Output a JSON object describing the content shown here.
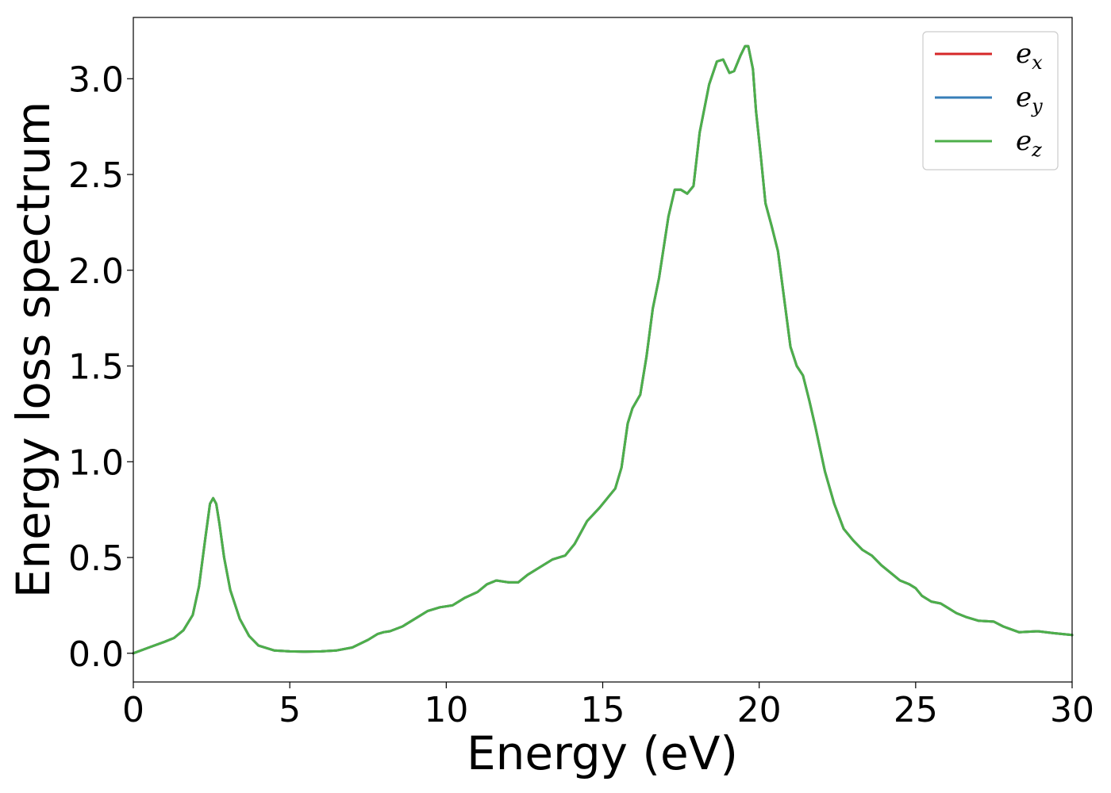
{
  "chart_data": {
    "type": "line",
    "title": "",
    "xlabel": "Energy (eV)",
    "ylabel": "Energy loss spectrum",
    "xlim": [
      0,
      30
    ],
    "ylim": [
      -0.15,
      3.32
    ],
    "xticks": [
      0,
      5,
      10,
      15,
      20,
      25,
      30
    ],
    "yticks": [
      0.0,
      0.5,
      1.0,
      1.5,
      2.0,
      2.5,
      3.0
    ],
    "xtick_labels": [
      "0",
      "5",
      "10",
      "15",
      "20",
      "25",
      "30"
    ],
    "ytick_labels": [
      "0.0",
      "0.5",
      "1.0",
      "1.5",
      "2.0",
      "2.5",
      "3.0"
    ],
    "grid": false,
    "legend_position": "top-right",
    "x": [
      0,
      0.5,
      1,
      1.3,
      1.6,
      1.9,
      2.1,
      2.3,
      2.45,
      2.55,
      2.65,
      2.75,
      2.9,
      3.1,
      3.4,
      3.7,
      4,
      4.5,
      5,
      5.5,
      6,
      6.5,
      7,
      7.5,
      7.8,
      8,
      8.2,
      8.6,
      9,
      9.4,
      9.8,
      10.2,
      10.6,
      11,
      11.3,
      11.6,
      12,
      12.3,
      12.6,
      13,
      13.4,
      13.8,
      14.1,
      14.5,
      14.9,
      15.2,
      15.4,
      15.6,
      15.8,
      15.95,
      16.2,
      16.4,
      16.6,
      16.8,
      17.1,
      17.3,
      17.5,
      17.7,
      17.9,
      18.1,
      18.4,
      18.65,
      18.85,
      19.05,
      19.2,
      19.4,
      19.55,
      19.65,
      19.8,
      19.9,
      20.05,
      20.2,
      20.4,
      20.6,
      20.8,
      21,
      21.2,
      21.4,
      21.6,
      21.8,
      22.1,
      22.4,
      22.7,
      23,
      23.3,
      23.6,
      23.9,
      24.2,
      24.5,
      24.8,
      25,
      25.2,
      25.5,
      25.8,
      26,
      26.3,
      26.6,
      27,
      27.5,
      27.8,
      28.3,
      28.9,
      29.4,
      30
    ],
    "series": [
      {
        "name": "e_x",
        "label_base": "e",
        "label_sub": "x",
        "color": "#d62728",
        "values": [
          0.0,
          0.03,
          0.06,
          0.08,
          0.12,
          0.2,
          0.35,
          0.6,
          0.78,
          0.81,
          0.78,
          0.68,
          0.5,
          0.33,
          0.18,
          0.09,
          0.04,
          0.015,
          0.01,
          0.008,
          0.01,
          0.015,
          0.03,
          0.07,
          0.1,
          0.11,
          0.115,
          0.14,
          0.18,
          0.22,
          0.24,
          0.25,
          0.29,
          0.32,
          0.36,
          0.38,
          0.37,
          0.37,
          0.41,
          0.45,
          0.49,
          0.51,
          0.57,
          0.69,
          0.76,
          0.82,
          0.86,
          0.97,
          1.2,
          1.28,
          1.35,
          1.55,
          1.8,
          1.96,
          2.28,
          2.42,
          2.42,
          2.4,
          2.44,
          2.72,
          2.97,
          3.09,
          3.1,
          3.03,
          3.04,
          3.12,
          3.17,
          3.17,
          3.05,
          2.83,
          2.6,
          2.35,
          2.23,
          2.1,
          1.85,
          1.6,
          1.5,
          1.45,
          1.32,
          1.18,
          0.95,
          0.78,
          0.65,
          0.59,
          0.54,
          0.51,
          0.46,
          0.42,
          0.38,
          0.36,
          0.34,
          0.3,
          0.27,
          0.26,
          0.24,
          0.21,
          0.19,
          0.17,
          0.165,
          0.14,
          0.11,
          0.115,
          0.105,
          0.095
        ]
      },
      {
        "name": "e_y",
        "label_base": "e",
        "label_sub": "y",
        "color": "#377eb8",
        "values": [
          0.0,
          0.03,
          0.06,
          0.08,
          0.12,
          0.2,
          0.35,
          0.6,
          0.78,
          0.81,
          0.78,
          0.68,
          0.5,
          0.33,
          0.18,
          0.09,
          0.04,
          0.015,
          0.01,
          0.008,
          0.01,
          0.015,
          0.03,
          0.07,
          0.1,
          0.11,
          0.115,
          0.14,
          0.18,
          0.22,
          0.24,
          0.25,
          0.29,
          0.32,
          0.36,
          0.38,
          0.37,
          0.37,
          0.41,
          0.45,
          0.49,
          0.51,
          0.57,
          0.69,
          0.76,
          0.82,
          0.86,
          0.97,
          1.2,
          1.28,
          1.35,
          1.55,
          1.8,
          1.96,
          2.28,
          2.42,
          2.42,
          2.4,
          2.44,
          2.72,
          2.97,
          3.09,
          3.1,
          3.03,
          3.04,
          3.12,
          3.17,
          3.17,
          3.05,
          2.83,
          2.6,
          2.35,
          2.23,
          2.1,
          1.85,
          1.6,
          1.5,
          1.45,
          1.32,
          1.18,
          0.95,
          0.78,
          0.65,
          0.59,
          0.54,
          0.51,
          0.46,
          0.42,
          0.38,
          0.36,
          0.34,
          0.3,
          0.27,
          0.26,
          0.24,
          0.21,
          0.19,
          0.17,
          0.165,
          0.14,
          0.11,
          0.115,
          0.105,
          0.095
        ]
      },
      {
        "name": "e_z",
        "label_base": "e",
        "label_sub": "z",
        "color": "#4daf4a",
        "values": [
          0.0,
          0.03,
          0.06,
          0.08,
          0.12,
          0.2,
          0.35,
          0.6,
          0.78,
          0.81,
          0.78,
          0.68,
          0.5,
          0.33,
          0.18,
          0.09,
          0.04,
          0.015,
          0.01,
          0.008,
          0.01,
          0.015,
          0.03,
          0.07,
          0.1,
          0.11,
          0.115,
          0.14,
          0.18,
          0.22,
          0.24,
          0.25,
          0.29,
          0.32,
          0.36,
          0.38,
          0.37,
          0.37,
          0.41,
          0.45,
          0.49,
          0.51,
          0.57,
          0.69,
          0.76,
          0.82,
          0.86,
          0.97,
          1.2,
          1.28,
          1.35,
          1.55,
          1.8,
          1.96,
          2.28,
          2.42,
          2.42,
          2.4,
          2.44,
          2.72,
          2.97,
          3.09,
          3.1,
          3.03,
          3.04,
          3.12,
          3.17,
          3.17,
          3.05,
          2.83,
          2.6,
          2.35,
          2.23,
          2.1,
          1.85,
          1.6,
          1.5,
          1.45,
          1.32,
          1.18,
          0.95,
          0.78,
          0.65,
          0.59,
          0.54,
          0.51,
          0.46,
          0.42,
          0.38,
          0.36,
          0.34,
          0.3,
          0.27,
          0.26,
          0.24,
          0.21,
          0.19,
          0.17,
          0.165,
          0.14,
          0.11,
          0.115,
          0.105,
          0.095
        ]
      }
    ]
  }
}
